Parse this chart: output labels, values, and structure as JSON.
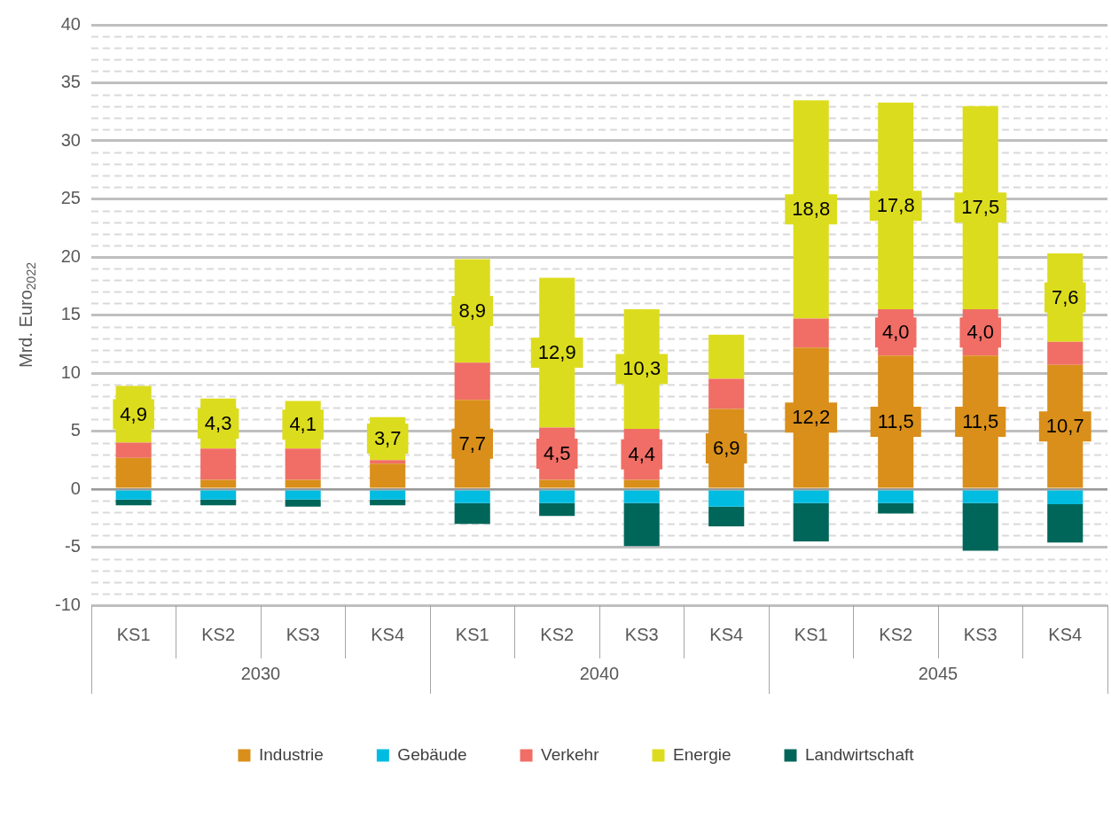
{
  "chart_data": {
    "type": "bar",
    "stacked": true,
    "ylabel": "Mrd. Euro$_{2022}$",
    "categories": [
      "KS1",
      "KS2",
      "KS3",
      "KS4",
      "KS1",
      "KS2",
      "KS3",
      "KS4",
      "KS1",
      "KS2",
      "KS3",
      "KS4"
    ],
    "annotations": [
      "2030",
      "2040",
      "2045"
    ],
    "series": [
      {
        "name": "Industrie",
        "color": "#d98f1a",
        "values": [
          2.7,
          0.8,
          0.8,
          2.2,
          7.7,
          0.8,
          0.8,
          6.9,
          12.2,
          11.5,
          11.5,
          10.7
        ],
        "value_labels": [
          null,
          null,
          null,
          null,
          "7,7",
          null,
          null,
          "6,9",
          "12,2",
          "11,5",
          "11,5",
          "10,7"
        ]
      },
      {
        "name": "Gebäude",
        "color": "#00bce0",
        "values": [
          -0.9,
          -0.9,
          -0.9,
          -0.9,
          -1.2,
          -1.2,
          -1.2,
          -1.5,
          -1.2,
          -1.2,
          -1.2,
          -1.3
        ]
      },
      {
        "name": "Verkehr",
        "color": "#f06e66",
        "values": [
          1.3,
          2.7,
          2.7,
          0.3,
          3.2,
          4.5,
          4.4,
          2.6,
          2.5,
          4.0,
          4.0,
          2.0
        ],
        "value_labels": [
          null,
          null,
          null,
          null,
          null,
          "4,5",
          "4,4",
          null,
          null,
          "4,0",
          "4,0",
          null
        ]
      },
      {
        "name": "Energie",
        "color": "#dcdc1e",
        "values": [
          4.9,
          4.3,
          4.1,
          3.7,
          8.9,
          12.9,
          10.3,
          3.8,
          18.8,
          17.8,
          17.5,
          7.6
        ],
        "value_labels": [
          "4,9",
          "4,3",
          "4,1",
          "3,7",
          "8,9",
          "12,9",
          "10,3",
          null,
          "18,8",
          "17,8",
          "17,5",
          "7,6"
        ]
      },
      {
        "name": "Landwirtschaft",
        "color": "#00665a",
        "values": [
          -0.5,
          -0.5,
          -0.6,
          -0.5,
          -1.8,
          -1.1,
          -3.7,
          -1.7,
          -3.3,
          -0.9,
          -4.1,
          -3.3
        ]
      }
    ],
    "ylim": [
      -10,
      40
    ],
    "yticks": [
      -10,
      -5,
      0,
      5,
      10,
      15,
      20,
      25,
      30,
      35,
      40
    ],
    "grid": "y",
    "legend": "bottom"
  }
}
